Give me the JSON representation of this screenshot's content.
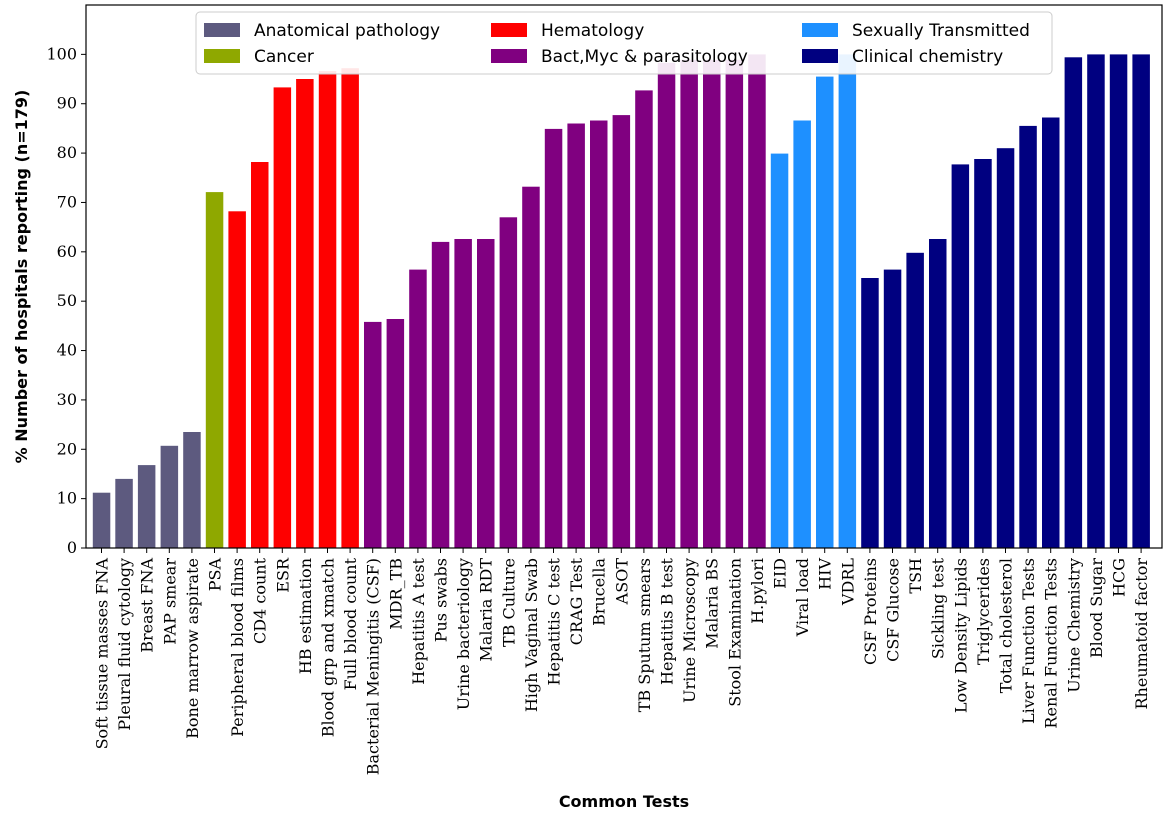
{
  "chart_data": {
    "type": "bar",
    "xlabel": "Common Tests",
    "ylabel": "% Number of hospitals reporting (n=179)",
    "ylim": [
      0,
      110
    ],
    "yticks": [
      0,
      10,
      20,
      30,
      40,
      50,
      60,
      70,
      80,
      90,
      100
    ],
    "legend_position": "top",
    "grid": false,
    "groups": [
      {
        "name": "Anatomical pathology",
        "color": "#5d5a7f"
      },
      {
        "name": "Cancer",
        "color": "#8fa800"
      },
      {
        "name": "Hematology",
        "color": "#fe0000"
      },
      {
        "name": "Bact,Myc & parasitology",
        "color": "#800080"
      },
      {
        "name": "Sexually Transmitted",
        "color": "#1e90ff"
      },
      {
        "name": "Clinical chemistry",
        "color": "#000080"
      }
    ],
    "bars": [
      {
        "label": "Soft tissue masses FNA",
        "value": 11.2,
        "group": 0
      },
      {
        "label": "Pleural fluid cytology",
        "value": 14.0,
        "group": 0
      },
      {
        "label": "Breast FNA",
        "value": 16.8,
        "group": 0
      },
      {
        "label": "PAP smear",
        "value": 20.7,
        "group": 0
      },
      {
        "label": "Bone marrow aspirate",
        "value": 23.5,
        "group": 0
      },
      {
        "label": "PSA",
        "value": 72.1,
        "group": 1
      },
      {
        "label": "Peripheral blood films",
        "value": 68.2,
        "group": 2
      },
      {
        "label": "CD4 count",
        "value": 78.2,
        "group": 2
      },
      {
        "label": "ESR",
        "value": 93.3,
        "group": 2
      },
      {
        "label": "HB estimation",
        "value": 95.0,
        "group": 2
      },
      {
        "label": "Blood grp and xmatch",
        "value": 96.6,
        "group": 2
      },
      {
        "label": "Full blood count",
        "value": 97.2,
        "group": 2
      },
      {
        "label": "Bacterial Meningitis (CSF)",
        "value": 45.8,
        "group": 3
      },
      {
        "label": "MDR_TB",
        "value": 46.4,
        "group": 3
      },
      {
        "label": "Hepatitis A test",
        "value": 56.4,
        "group": 3
      },
      {
        "label": "Pus swabs",
        "value": 62.0,
        "group": 3
      },
      {
        "label": "Urine bacteriology",
        "value": 62.6,
        "group": 3
      },
      {
        "label": "Malaria RDT",
        "value": 62.6,
        "group": 3
      },
      {
        "label": "TB Culture",
        "value": 67.0,
        "group": 3
      },
      {
        "label": "High Vaginal Swab",
        "value": 73.2,
        "group": 3
      },
      {
        "label": "Hepatitis C test",
        "value": 84.9,
        "group": 3
      },
      {
        "label": "CRAG Test",
        "value": 86.0,
        "group": 3
      },
      {
        "label": "Brucella",
        "value": 86.6,
        "group": 3
      },
      {
        "label": "ASOT",
        "value": 87.7,
        "group": 3
      },
      {
        "label": "TB Sputum smears",
        "value": 92.7,
        "group": 3
      },
      {
        "label": "Hepatitis B test",
        "value": 98.3,
        "group": 3
      },
      {
        "label": "Urine Microscopy",
        "value": 98.9,
        "group": 3
      },
      {
        "label": "Malaria BS",
        "value": 98.9,
        "group": 3
      },
      {
        "label": "Stool Examination",
        "value": 98.9,
        "group": 3
      },
      {
        "label": "H.pylori",
        "value": 100,
        "group": 3
      },
      {
        "label": "EID",
        "value": 79.9,
        "group": 4
      },
      {
        "label": "Viral load",
        "value": 86.6,
        "group": 4
      },
      {
        "label": "HIV",
        "value": 95.5,
        "group": 4
      },
      {
        "label": "VDRL",
        "value": 100,
        "group": 4
      },
      {
        "label": "CSF Proteins",
        "value": 54.7,
        "group": 5
      },
      {
        "label": "CSF Glucose",
        "value": 56.4,
        "group": 5
      },
      {
        "label": "TSH",
        "value": 59.8,
        "group": 5
      },
      {
        "label": "Sickling test",
        "value": 62.6,
        "group": 5
      },
      {
        "label": "Low Density Lipids",
        "value": 77.7,
        "group": 5
      },
      {
        "label": "Triglycerides",
        "value": 78.8,
        "group": 5
      },
      {
        "label": "Total cholesterol",
        "value": 81.0,
        "group": 5
      },
      {
        "label": "Liver Function Tests",
        "value": 85.5,
        "group": 5
      },
      {
        "label": "Renal Function Tests",
        "value": 87.2,
        "group": 5
      },
      {
        "label": "Urine Chemistry",
        "value": 99.4,
        "group": 5
      },
      {
        "label": "Blood Sugar",
        "value": 100,
        "group": 5
      },
      {
        "label": "HCG",
        "value": 100,
        "group": 5
      },
      {
        "label": "Rheumatoid factor",
        "value": 100,
        "group": 5
      }
    ]
  }
}
